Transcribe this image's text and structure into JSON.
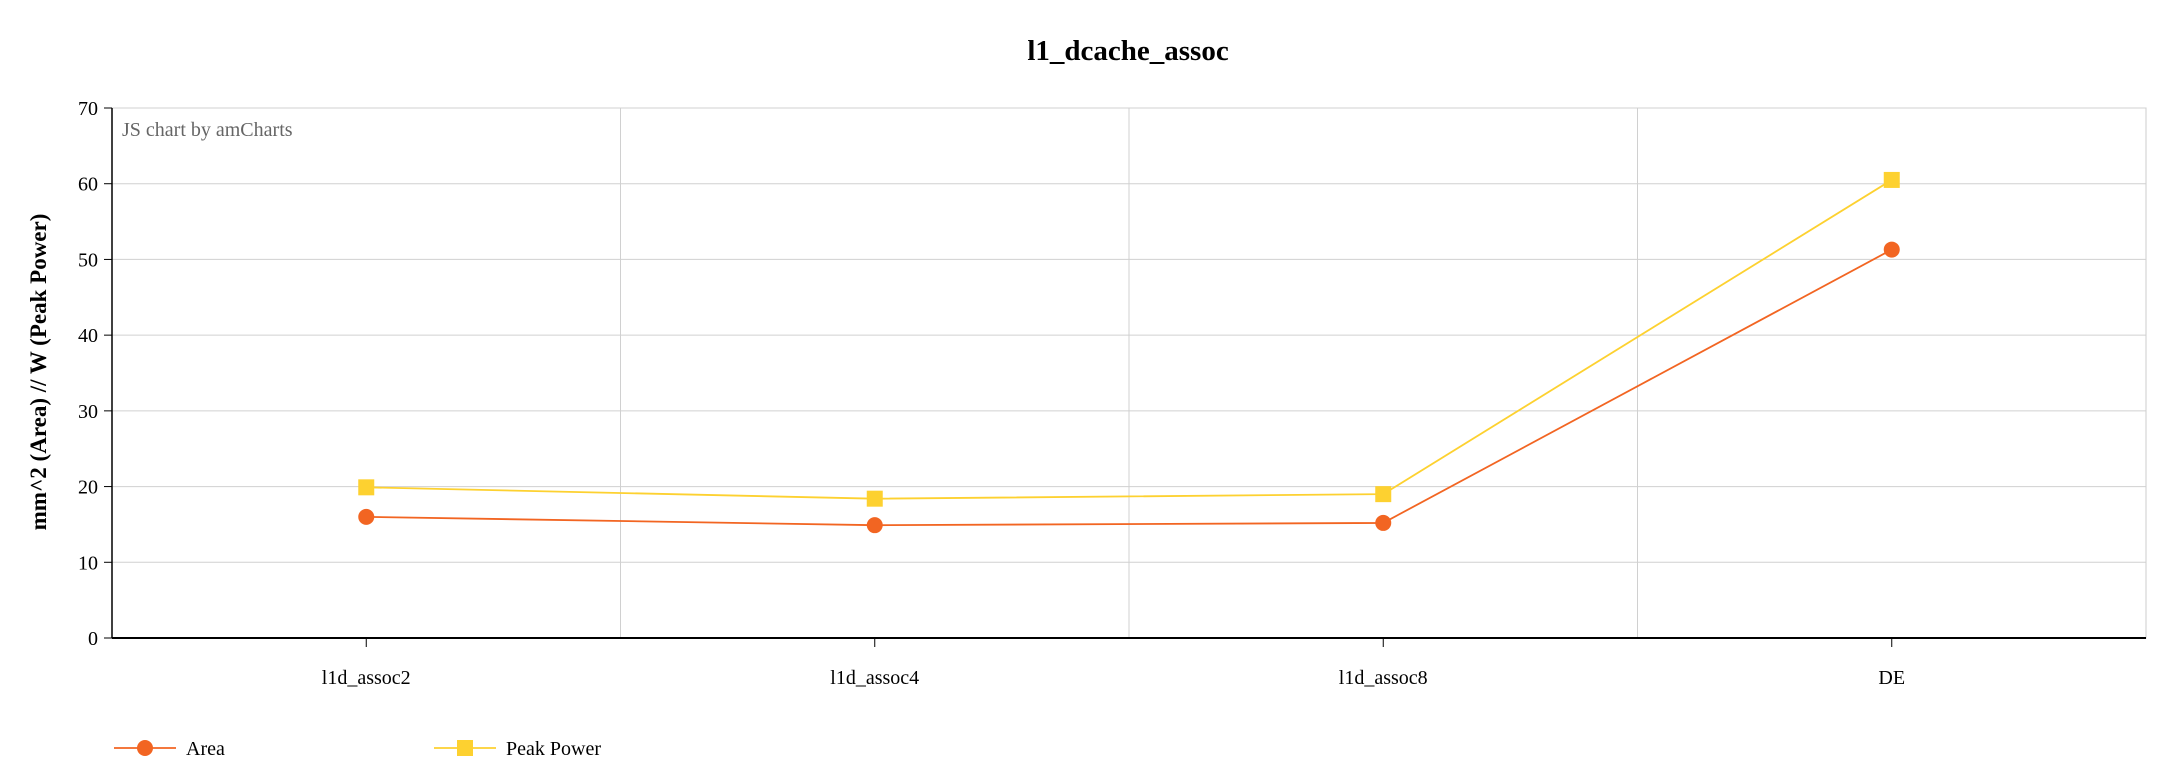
{
  "chart_data": {
    "type": "line",
    "title": "l1_dcache_assoc",
    "ylabel": "mm^2 (Area) // W (Peak Power)",
    "xlabel": "",
    "categories": [
      "l1d_assoc2",
      "l1d_assoc4",
      "l1d_assoc8",
      "DE"
    ],
    "ylim": [
      0,
      70
    ],
    "yticks": [
      0,
      10,
      20,
      30,
      40,
      50,
      60,
      70
    ],
    "grid": true,
    "legend_position": "bottom-left",
    "series": [
      {
        "name": "Area",
        "values": [
          16.0,
          14.9,
          15.2,
          51.3
        ],
        "color": "#f26522",
        "marker": "circle"
      },
      {
        "name": "Peak Power",
        "values": [
          19.9,
          18.4,
          19.0,
          60.5
        ],
        "color": "#fdd130",
        "marker": "square"
      }
    ],
    "credit": "JS chart by amCharts"
  }
}
